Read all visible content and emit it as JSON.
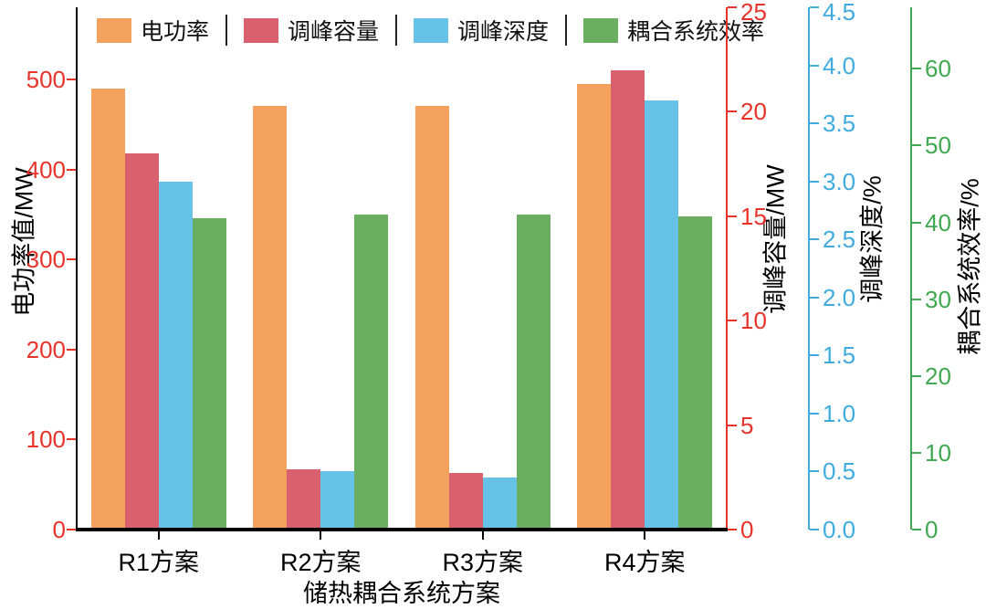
{
  "chart_data": {
    "type": "bar",
    "title": "",
    "xlabel": "储热耦合系统方案",
    "categories": [
      "R1方案",
      "R2方案",
      "R3方案",
      "R4方案"
    ],
    "legend_position": "top",
    "grid": false,
    "series": [
      {
        "name": "电功率",
        "axis": "left",
        "color": "#F2A25C",
        "values": [
          490,
          470,
          470,
          495
        ]
      },
      {
        "name": "调峰容量",
        "axis": "right1",
        "color": "#D9616F",
        "values": [
          18,
          2.9,
          2.7,
          22
        ]
      },
      {
        "name": "调峰深度",
        "axis": "right2",
        "color": "#67C2E7",
        "values": [
          3.0,
          0.5,
          0.45,
          3.7
        ]
      },
      {
        "name": "耦合系统效率",
        "axis": "right3",
        "color": "#6BAD61",
        "values": [
          40.5,
          41,
          41,
          40.8
        ]
      }
    ],
    "axes": {
      "left": {
        "label": "电功率值/MW",
        "color": "#E8332A",
        "min": 0,
        "max": 580,
        "ticks": [
          0,
          100,
          200,
          300,
          400,
          500
        ]
      },
      "right1": {
        "label": "调峰容量/MW",
        "color": "#E8332A",
        "min": 0,
        "max": 25,
        "ticks": [
          0,
          5,
          10,
          15,
          20,
          25
        ]
      },
      "right2": {
        "label": "调峰深度/%",
        "color": "#3FABDF",
        "min": 0,
        "max": 4.5,
        "ticks": [
          "0.0",
          "0.5",
          "1.0",
          "1.5",
          "2.0",
          "2.5",
          "3.0",
          "3.5",
          "4.0",
          "4.5"
        ]
      },
      "right3": {
        "label": "耦合系统效率/%",
        "color": "#3FA850",
        "min": 0,
        "max": 68,
        "ticks": [
          0,
          10,
          20,
          30,
          40,
          50,
          60
        ]
      }
    }
  }
}
